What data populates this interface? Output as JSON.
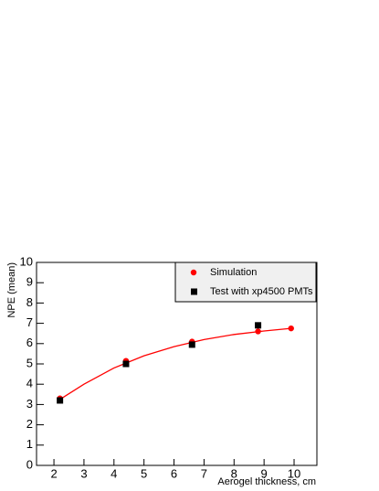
{
  "chart_data": {
    "type": "scatter",
    "x_label": "Aerogel thickness, cm",
    "y_label": "NPE (mean)",
    "xlim": [
      1.42,
      10.76
    ],
    "ylim": [
      0,
      10
    ],
    "xticks": [
      2,
      3,
      4,
      5,
      6,
      7,
      8,
      9,
      10
    ],
    "yticks": [
      0,
      1,
      2,
      3,
      4,
      5,
      6,
      7,
      8,
      9,
      10
    ],
    "legend": "top-right",
    "series": [
      {
        "name": "Simulation",
        "color": "#ff0000",
        "marker": "circle",
        "x": [
          2.2,
          4.4,
          6.6,
          8.8,
          9.9
        ],
        "values": [
          3.3,
          5.15,
          6.1,
          6.6,
          6.75
        ]
      },
      {
        "name": "Test with xp4500 PMTs",
        "color": "#000000",
        "marker": "square",
        "x": [
          2.2,
          4.4,
          6.6,
          8.8
        ],
        "values": [
          3.2,
          5.0,
          5.95,
          6.9
        ],
        "errors": [
          0.15,
          0.15,
          0.15,
          0.15
        ]
      }
    ],
    "fit": {
      "color": "#ff0000",
      "x": [
        2.2,
        3,
        4,
        5,
        6,
        7,
        8,
        9,
        9.9
      ],
      "values": [
        3.25,
        4.0,
        4.8,
        5.4,
        5.85,
        6.2,
        6.45,
        6.62,
        6.75
      ]
    }
  }
}
